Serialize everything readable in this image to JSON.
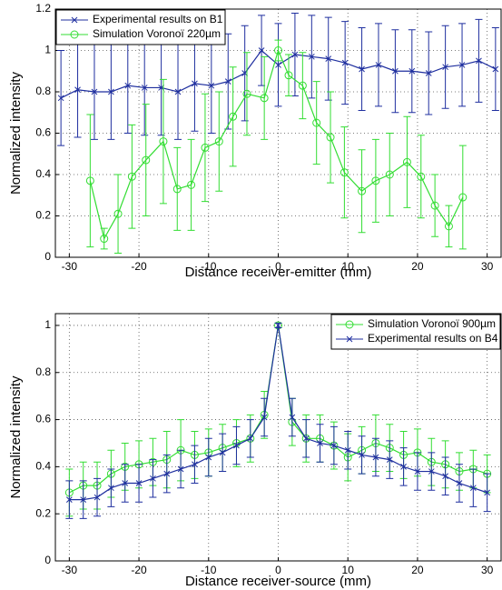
{
  "chart_data": [
    {
      "type": "line",
      "xlabel": "Distance receiver-emitter (mm)",
      "ylabel": "Normalized intensity",
      "xlim": [
        -32,
        32
      ],
      "xticks": [
        -30,
        -20,
        -10,
        0,
        10,
        20,
        30
      ],
      "ylim": [
        0,
        1.2
      ],
      "yticks": [
        0,
        0.2,
        0.4,
        0.6,
        0.8,
        1,
        1.2
      ],
      "grid": true,
      "legend": "upper left",
      "series": [
        {
          "name": "Experimental results on B1",
          "color": "#1f2f9f",
          "marker": "x",
          "x": [
            -31.2,
            -28.8,
            -26.4,
            -24,
            -21.6,
            -19.2,
            -16.8,
            -14.4,
            -12,
            -9.6,
            -7.2,
            -4.8,
            -2.4,
            0,
            2.4,
            4.8,
            7.2,
            9.6,
            12,
            14.4,
            16.8,
            19.2,
            21.6,
            24,
            26.4,
            28.8,
            31.2
          ],
          "values": [
            0.77,
            0.81,
            0.8,
            0.8,
            0.83,
            0.82,
            0.82,
            0.8,
            0.84,
            0.83,
            0.85,
            0.89,
            1.0,
            0.93,
            0.98,
            0.97,
            0.96,
            0.94,
            0.91,
            0.93,
            0.9,
            0.9,
            0.89,
            0.92,
            0.93,
            0.95,
            0.91
          ],
          "errors": [
            0.23,
            0.23,
            0.23,
            0.23,
            0.23,
            0.23,
            0.23,
            0.23,
            0.23,
            0.23,
            0.23,
            0.23,
            0.17,
            0.2,
            0.2,
            0.2,
            0.2,
            0.2,
            0.2,
            0.2,
            0.2,
            0.2,
            0.2,
            0.2,
            0.2,
            0.2,
            0.2
          ]
        },
        {
          "name": "Simulation Voronoï 220µm",
          "color": "#33dd33",
          "marker": "o",
          "x": [
            -27,
            -25,
            -23,
            -21,
            -19,
            -16.5,
            -14.5,
            -12.5,
            -10.5,
            -8.5,
            -6.5,
            -4.5,
            -2,
            0,
            1.5,
            3.5,
            5.5,
            7.5,
            9.5,
            12,
            14,
            16,
            18.5,
            20.5,
            22.5,
            24.5,
            26.5
          ],
          "values": [
            0.37,
            0.09,
            0.21,
            0.39,
            0.47,
            0.56,
            0.33,
            0.35,
            0.53,
            0.56,
            0.68,
            0.79,
            0.77,
            1.0,
            0.88,
            0.83,
            0.65,
            0.58,
            0.41,
            0.32,
            0.37,
            0.4,
            0.46,
            0.39,
            0.25,
            0.15,
            0.29
          ],
          "errors": [
            0.32,
            0.05,
            0.19,
            0.25,
            0.27,
            0.3,
            0.2,
            0.22,
            0.26,
            0.24,
            0.24,
            0.2,
            0.2,
            0.05,
            0.1,
            0.16,
            0.2,
            0.22,
            0.22,
            0.2,
            0.2,
            0.2,
            0.22,
            0.2,
            0.15,
            0.1,
            0.25
          ]
        }
      ]
    },
    {
      "type": "line",
      "xlabel": "Distance receiver-source (mm)",
      "ylabel": "Normalized intensity",
      "xlim": [
        -32,
        32
      ],
      "xticks": [
        -30,
        -20,
        -10,
        0,
        10,
        20,
        30
      ],
      "ylim": [
        0,
        1.05
      ],
      "yticks": [
        0,
        0.2,
        0.4,
        0.6,
        0.8,
        1
      ],
      "grid": true,
      "legend": "upper right",
      "series": [
        {
          "name": "Simulation Voronoï 900µm",
          "color": "#33dd33",
          "marker": "o",
          "x": [
            -30,
            -28,
            -26,
            -24,
            -22,
            -20,
            -18,
            -16,
            -14,
            -12,
            -10,
            -8,
            -6,
            -4,
            -2,
            0,
            2,
            4,
            6,
            8,
            10,
            12,
            14,
            16,
            18,
            20,
            22,
            24,
            26,
            28,
            30
          ],
          "values": [
            0.29,
            0.32,
            0.32,
            0.37,
            0.4,
            0.41,
            0.42,
            0.43,
            0.47,
            0.45,
            0.46,
            0.48,
            0.5,
            0.52,
            0.62,
            1.0,
            0.59,
            0.52,
            0.52,
            0.49,
            0.44,
            0.47,
            0.5,
            0.48,
            0.45,
            0.46,
            0.42,
            0.41,
            0.38,
            0.39,
            0.37
          ],
          "errors": [
            0.1,
            0.1,
            0.1,
            0.1,
            0.1,
            0.1,
            0.1,
            0.12,
            0.13,
            0.1,
            0.1,
            0.1,
            0.1,
            0.1,
            0.1,
            0.01,
            0.1,
            0.1,
            0.1,
            0.1,
            0.1,
            0.1,
            0.12,
            0.1,
            0.1,
            0.1,
            0.1,
            0.1,
            0.08,
            0.08,
            0.08
          ]
        },
        {
          "name": "Experimental results on B4",
          "color": "#1f2f9f",
          "marker": "x",
          "x": [
            -30,
            -28,
            -26,
            -24,
            -22,
            -20,
            -18,
            -16,
            -14,
            -12,
            -10,
            -8,
            -6,
            -4,
            -2,
            0,
            2,
            4,
            6,
            8,
            10,
            12,
            14,
            16,
            18,
            20,
            22,
            24,
            26,
            28,
            30
          ],
          "values": [
            0.26,
            0.26,
            0.27,
            0.31,
            0.33,
            0.33,
            0.35,
            0.37,
            0.39,
            0.41,
            0.44,
            0.46,
            0.49,
            0.52,
            0.61,
            1.0,
            0.61,
            0.52,
            0.5,
            0.49,
            0.47,
            0.45,
            0.44,
            0.43,
            0.4,
            0.38,
            0.38,
            0.36,
            0.33,
            0.31,
            0.29
          ],
          "errors": [
            0.08,
            0.08,
            0.08,
            0.08,
            0.08,
            0.08,
            0.08,
            0.08,
            0.08,
            0.08,
            0.08,
            0.08,
            0.08,
            0.08,
            0.08,
            0.01,
            0.08,
            0.08,
            0.08,
            0.08,
            0.08,
            0.08,
            0.08,
            0.08,
            0.08,
            0.08,
            0.08,
            0.08,
            0.08,
            0.08,
            0.08
          ]
        }
      ]
    }
  ]
}
